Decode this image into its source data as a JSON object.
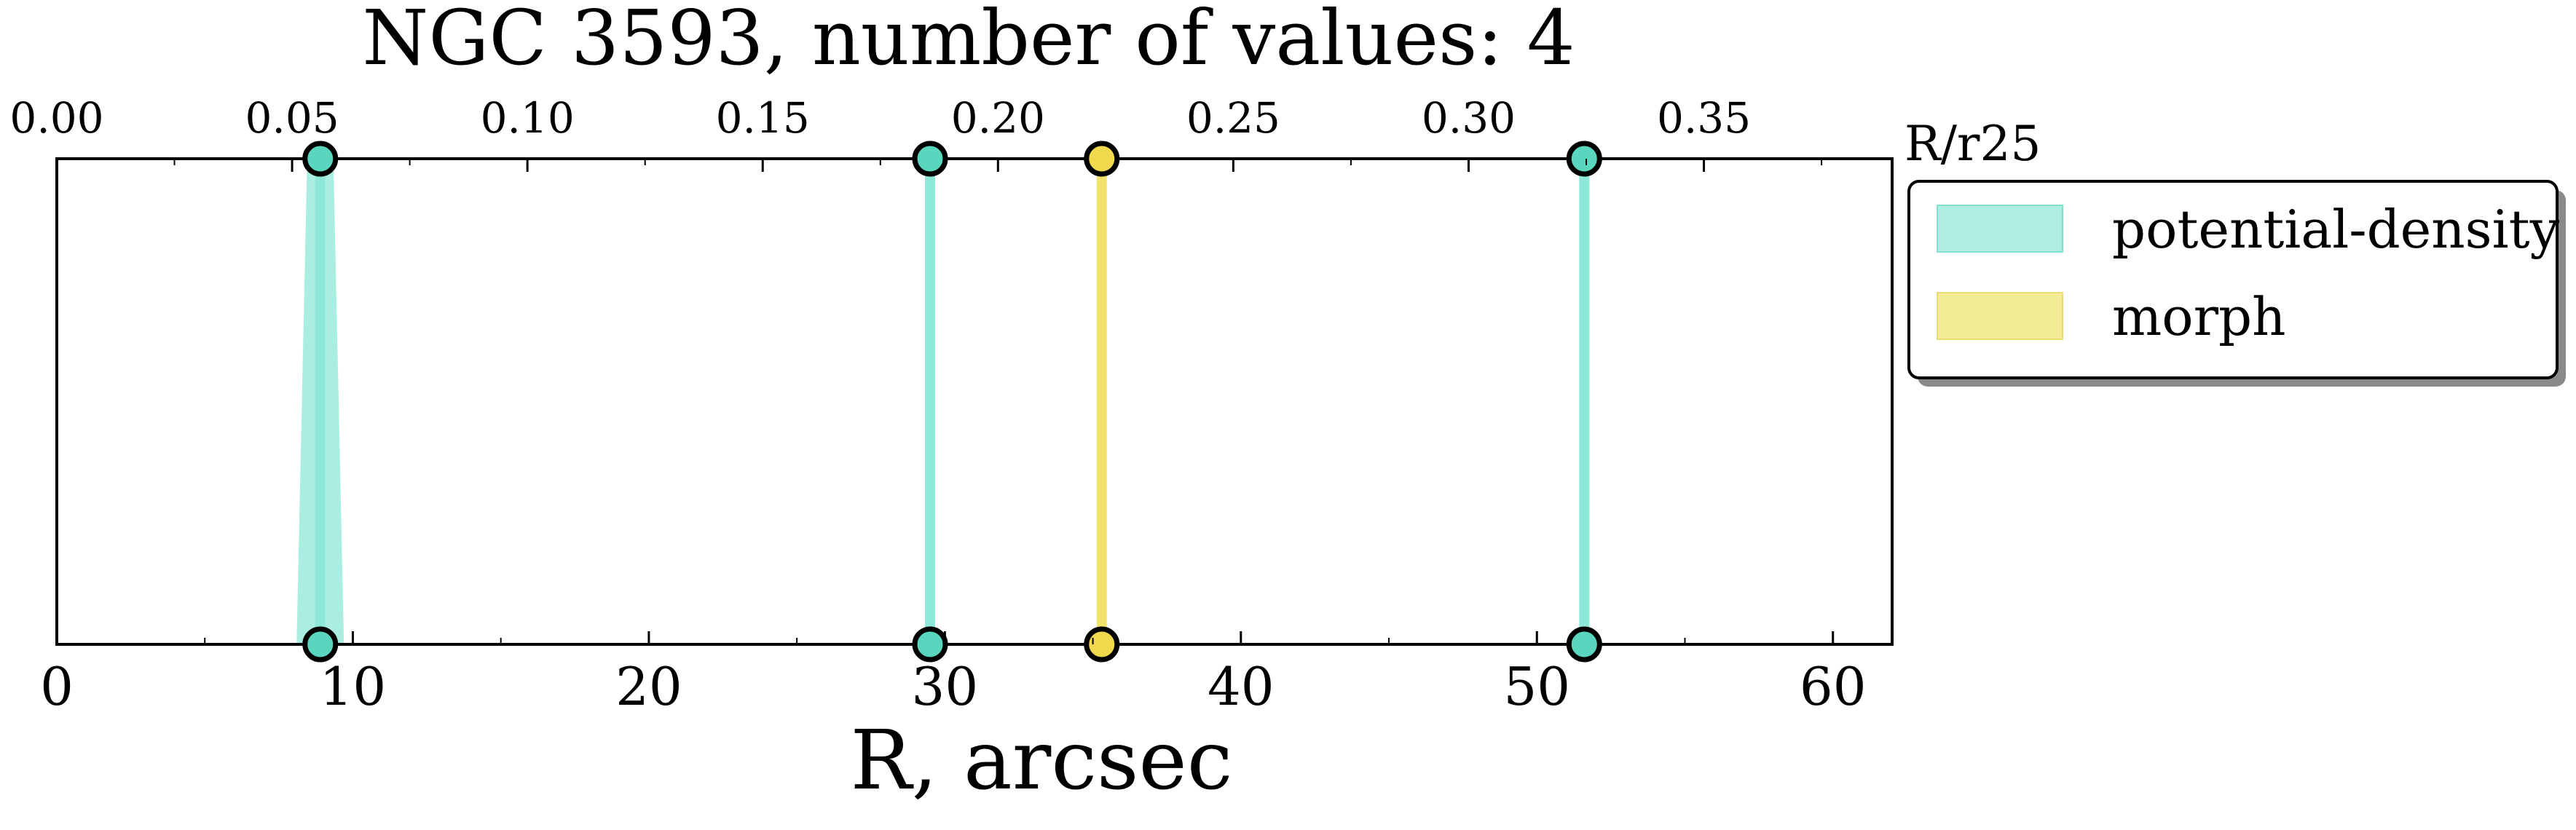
{
  "chart_data": {
    "type": "scatter",
    "title": "NGC 3593, number of values: 4",
    "xlabel": "R, arcsec",
    "x2label": "R/r25",
    "xlim": [
      0,
      62
    ],
    "x_ticks": [
      0,
      10,
      20,
      30,
      40,
      50,
      60
    ],
    "x_tick_labels": [
      "0",
      "10",
      "20",
      "30",
      "40",
      "50",
      "60"
    ],
    "x2lim": [
      0,
      0.39
    ],
    "x2_ticks": [
      0.0,
      0.05,
      0.1,
      0.15,
      0.2,
      0.25,
      0.3,
      0.35
    ],
    "x2_tick_labels": [
      "0.00",
      "0.05",
      "0.10",
      "0.15",
      "0.20",
      "0.25",
      "0.30",
      "0.35"
    ],
    "grid": false,
    "legend_position": "outside right, top",
    "series": [
      {
        "name": "potential-density",
        "color": "#8ee8d8",
        "marker_color": "#5ad6bf",
        "values": [
          {
            "x": 8.9,
            "x_low": 8.1,
            "x_high": 9.7
          },
          {
            "x": 29.5
          },
          {
            "x": 51.6
          }
        ]
      },
      {
        "name": "morph",
        "color": "#f1e26a",
        "marker_color": "#f0d94c",
        "values": [
          {
            "x": 35.3
          }
        ]
      }
    ]
  }
}
